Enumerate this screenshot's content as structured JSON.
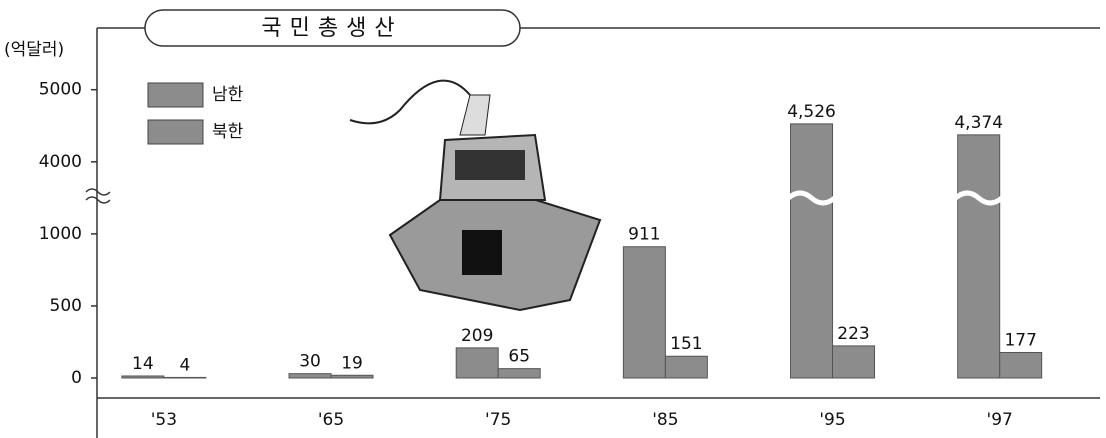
{
  "chart_data": {
    "type": "bar",
    "title": "국민총생산",
    "y_unit": "(억달러)",
    "categories": [
      "'53",
      "'65",
      "'75",
      "'85",
      "'95",
      "'97"
    ],
    "series": [
      {
        "name": "남한",
        "color": "#8c8c8c",
        "values": [
          14,
          30,
          209,
          911,
          4526,
          4374
        ],
        "value_labels": [
          "14",
          "30",
          "209",
          "911",
          "4,526",
          "4,374"
        ]
      },
      {
        "name": "북한",
        "color": "#8c8c8c",
        "values": [
          4,
          19,
          65,
          151,
          223,
          177
        ]
      }
    ],
    "ylim": [
      0,
      5800
    ],
    "ybreak": [
      1270,
      3540
    ],
    "yticks": [
      0,
      500,
      1000,
      4000,
      5000
    ],
    "legend": "upper left"
  }
}
